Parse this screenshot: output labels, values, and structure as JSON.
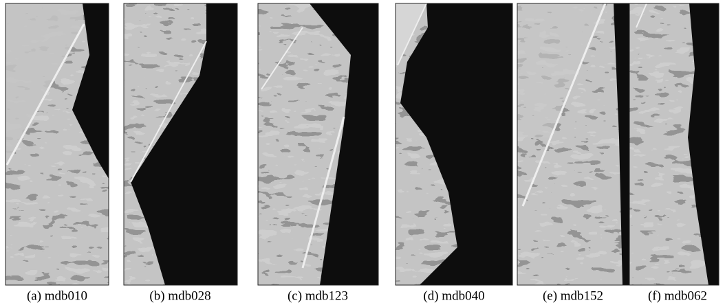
{
  "figure": {
    "panels": [
      {
        "caption": "(a) mdb010"
      },
      {
        "caption": "(b) mdb028"
      },
      {
        "caption": "(c) mdb123"
      },
      {
        "caption": "(d) mdb040"
      },
      {
        "caption": "(e) mdb152"
      },
      {
        "caption": "(f) mdb062"
      }
    ]
  }
}
